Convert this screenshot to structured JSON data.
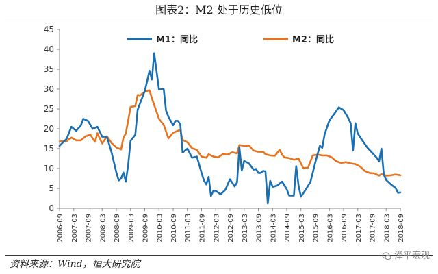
{
  "figure": {
    "title": "图表2：M2 处于历史低位",
    "source": "资料来源：Wind，恒大研究院",
    "watermark": "泽平宏观"
  },
  "colors": {
    "m1": "#1a6fb3",
    "m2": "#e8731f",
    "axis": "#888888"
  },
  "chart_data": {
    "type": "line",
    "title": "",
    "xlabel": "",
    "ylabel": "",
    "ylim": [
      0,
      45
    ],
    "yticks": [
      0,
      5,
      10,
      15,
      20,
      25,
      30,
      35,
      40,
      45
    ],
    "xlim": [
      "2006-09",
      "2018-09"
    ],
    "xticks": [
      "2006-09",
      "2007-03",
      "2007-09",
      "2008-03",
      "2008-09",
      "2009-03",
      "2009-09",
      "2010-03",
      "2010-09",
      "2011-03",
      "2011-09",
      "2012-03",
      "2012-09",
      "2013-03",
      "2013-09",
      "2014-03",
      "2014-09",
      "2015-03",
      "2015-09",
      "2016-03",
      "2016-09",
      "2017-03",
      "2017-09",
      "2018-03",
      "2018-09"
    ],
    "grid": false,
    "legend": "top",
    "series": [
      {
        "name": "M1：同比",
        "color": "#1a6fb3",
        "points": [
          [
            "2006-09",
            15.7
          ],
          [
            "2006-12",
            17.5
          ],
          [
            "2007-02",
            20.5
          ],
          [
            "2007-04",
            19.5
          ],
          [
            "2007-06",
            20.8
          ],
          [
            "2007-07",
            22.5
          ],
          [
            "2007-09",
            22.0
          ],
          [
            "2007-11",
            20.0
          ],
          [
            "2008-01",
            20.5
          ],
          [
            "2008-03",
            18.0
          ],
          [
            "2008-05",
            18.0
          ],
          [
            "2008-07",
            14.0
          ],
          [
            "2008-09",
            9.0
          ],
          [
            "2008-10",
            7.0
          ],
          [
            "2008-11",
            7.5
          ],
          [
            "2008-12",
            9.0
          ],
          [
            "2009-01",
            6.7
          ],
          [
            "2009-02",
            10.9
          ],
          [
            "2009-03",
            17.0
          ],
          [
            "2009-05",
            18.5
          ],
          [
            "2009-06",
            24.8
          ],
          [
            "2009-07",
            26.4
          ],
          [
            "2009-09",
            29.5
          ],
          [
            "2009-10",
            32.0
          ],
          [
            "2009-11",
            34.6
          ],
          [
            "2009-12",
            32.4
          ],
          [
            "2010-01",
            39.0
          ],
          [
            "2010-03",
            29.9
          ],
          [
            "2010-05",
            30.0
          ],
          [
            "2010-06",
            24.6
          ],
          [
            "2010-07",
            23.0
          ],
          [
            "2010-09",
            20.9
          ],
          [
            "2010-10",
            22.0
          ],
          [
            "2010-11",
            22.0
          ],
          [
            "2010-12",
            21.2
          ],
          [
            "2011-01",
            14.0
          ],
          [
            "2011-03",
            15.0
          ],
          [
            "2011-05",
            12.7
          ],
          [
            "2011-07",
            13.0
          ],
          [
            "2011-09",
            8.9
          ],
          [
            "2011-10",
            7.0
          ],
          [
            "2011-11",
            6.0
          ],
          [
            "2011-12",
            7.9
          ],
          [
            "2012-01",
            3.1
          ],
          [
            "2012-02",
            4.4
          ],
          [
            "2012-03",
            4.4
          ],
          [
            "2012-05",
            3.5
          ],
          [
            "2012-07",
            4.6
          ],
          [
            "2012-09",
            7.3
          ],
          [
            "2012-11",
            5.5
          ],
          [
            "2012-12",
            6.5
          ],
          [
            "2013-01",
            15.3
          ],
          [
            "2013-02",
            9.5
          ],
          [
            "2013-03",
            11.9
          ],
          [
            "2013-05",
            11.3
          ],
          [
            "2013-07",
            9.7
          ],
          [
            "2013-08",
            9.9
          ],
          [
            "2013-09",
            8.9
          ],
          [
            "2013-10",
            8.9
          ],
          [
            "2013-11",
            9.4
          ],
          [
            "2013-12",
            9.3
          ],
          [
            "2014-01",
            1.2
          ],
          [
            "2014-02",
            6.9
          ],
          [
            "2014-03",
            5.4
          ],
          [
            "2014-05",
            5.7
          ],
          [
            "2014-07",
            6.7
          ],
          [
            "2014-09",
            4.8
          ],
          [
            "2014-10",
            3.2
          ],
          [
            "2014-12",
            3.2
          ],
          [
            "2015-01",
            10.6
          ],
          [
            "2015-02",
            5.6
          ],
          [
            "2015-03",
            2.9
          ],
          [
            "2015-05",
            4.7
          ],
          [
            "2015-07",
            6.6
          ],
          [
            "2015-09",
            11.4
          ],
          [
            "2015-11",
            15.7
          ],
          [
            "2015-12",
            15.2
          ],
          [
            "2016-01",
            18.6
          ],
          [
            "2016-03",
            22.1
          ],
          [
            "2016-05",
            23.7
          ],
          [
            "2016-07",
            25.4
          ],
          [
            "2016-09",
            24.7
          ],
          [
            "2016-11",
            22.7
          ],
          [
            "2016-12",
            21.4
          ],
          [
            "2017-01",
            14.5
          ],
          [
            "2017-02",
            21.4
          ],
          [
            "2017-03",
            18.8
          ],
          [
            "2017-05",
            17.0
          ],
          [
            "2017-07",
            15.3
          ],
          [
            "2017-09",
            14.0
          ],
          [
            "2017-11",
            12.7
          ],
          [
            "2017-12",
            11.8
          ],
          [
            "2018-01",
            15.0
          ],
          [
            "2018-02",
            8.5
          ],
          [
            "2018-03",
            7.1
          ],
          [
            "2018-05",
            6.0
          ],
          [
            "2018-07",
            5.1
          ],
          [
            "2018-08",
            3.9
          ],
          [
            "2018-09",
            4.0
          ]
        ]
      },
      {
        "name": "M2：同比",
        "color": "#e8731f",
        "points": [
          [
            "2006-09",
            16.8
          ],
          [
            "2006-12",
            16.9
          ],
          [
            "2007-02",
            17.8
          ],
          [
            "2007-04",
            17.1
          ],
          [
            "2007-06",
            17.1
          ],
          [
            "2007-08",
            18.1
          ],
          [
            "2007-10",
            18.5
          ],
          [
            "2007-12",
            16.7
          ],
          [
            "2008-01",
            18.9
          ],
          [
            "2008-03",
            16.3
          ],
          [
            "2008-05",
            18.1
          ],
          [
            "2008-07",
            16.4
          ],
          [
            "2008-09",
            15.3
          ],
          [
            "2008-11",
            14.8
          ],
          [
            "2008-12",
            17.8
          ],
          [
            "2009-01",
            18.8
          ],
          [
            "2009-03",
            25.5
          ],
          [
            "2009-05",
            25.7
          ],
          [
            "2009-06",
            28.5
          ],
          [
            "2009-07",
            28.4
          ],
          [
            "2009-09",
            29.3
          ],
          [
            "2009-11",
            29.7
          ],
          [
            "2009-12",
            27.7
          ],
          [
            "2010-01",
            26.0
          ],
          [
            "2010-03",
            22.5
          ],
          [
            "2010-05",
            21.0
          ],
          [
            "2010-07",
            17.6
          ],
          [
            "2010-09",
            19.0
          ],
          [
            "2010-11",
            19.5
          ],
          [
            "2010-12",
            19.7
          ],
          [
            "2011-01",
            17.2
          ],
          [
            "2011-03",
            16.6
          ],
          [
            "2011-05",
            15.1
          ],
          [
            "2011-07",
            14.7
          ],
          [
            "2011-09",
            13.0
          ],
          [
            "2011-11",
            12.7
          ],
          [
            "2011-12",
            13.6
          ],
          [
            "2012-02",
            13.0
          ],
          [
            "2012-04",
            12.8
          ],
          [
            "2012-06",
            13.6
          ],
          [
            "2012-08",
            13.5
          ],
          [
            "2012-10",
            14.1
          ],
          [
            "2012-12",
            13.8
          ],
          [
            "2013-01",
            15.9
          ],
          [
            "2013-03",
            15.7
          ],
          [
            "2013-05",
            15.8
          ],
          [
            "2013-07",
            14.5
          ],
          [
            "2013-09",
            14.2
          ],
          [
            "2013-11",
            14.2
          ],
          [
            "2013-12",
            13.6
          ],
          [
            "2014-02",
            13.3
          ],
          [
            "2014-04",
            13.2
          ],
          [
            "2014-06",
            14.7
          ],
          [
            "2014-07",
            13.5
          ],
          [
            "2014-08",
            12.8
          ],
          [
            "2014-10",
            12.6
          ],
          [
            "2014-12",
            12.2
          ],
          [
            "2015-02",
            12.5
          ],
          [
            "2015-04",
            10.1
          ],
          [
            "2015-06",
            10.2
          ],
          [
            "2015-08",
            13.3
          ],
          [
            "2015-10",
            13.5
          ],
          [
            "2015-12",
            13.3
          ],
          [
            "2016-02",
            13.3
          ],
          [
            "2016-04",
            12.8
          ],
          [
            "2016-06",
            11.8
          ],
          [
            "2016-08",
            11.4
          ],
          [
            "2016-09",
            11.5
          ],
          [
            "2016-10",
            11.6
          ],
          [
            "2016-12",
            11.3
          ],
          [
            "2017-02",
            11.1
          ],
          [
            "2017-04",
            10.5
          ],
          [
            "2017-06",
            9.4
          ],
          [
            "2017-08",
            8.9
          ],
          [
            "2017-10",
            8.8
          ],
          [
            "2017-12",
            8.2
          ],
          [
            "2018-01",
            8.6
          ],
          [
            "2018-03",
            8.2
          ],
          [
            "2018-05",
            8.3
          ],
          [
            "2018-07",
            8.5
          ],
          [
            "2018-09",
            8.3
          ]
        ]
      }
    ]
  }
}
